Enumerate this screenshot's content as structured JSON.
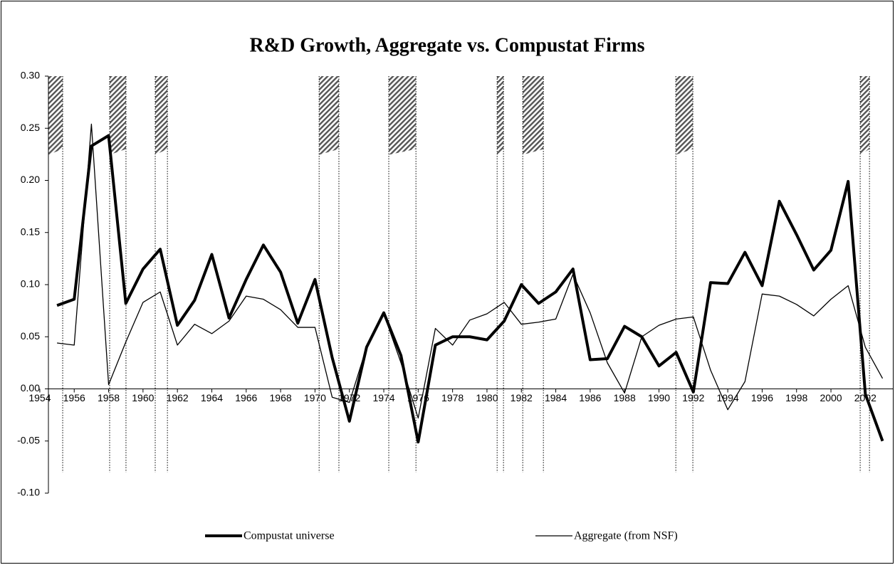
{
  "chart_data": {
    "type": "line",
    "title": "R&D Growth, Aggregate vs. Compustat Firms",
    "x": [
      1955,
      1956,
      1957,
      1958,
      1959,
      1960,
      1961,
      1962,
      1963,
      1964,
      1965,
      1966,
      1967,
      1968,
      1969,
      1970,
      1971,
      1972,
      1973,
      1974,
      1975,
      1976,
      1977,
      1978,
      1979,
      1980,
      1981,
      1982,
      1983,
      1984,
      1985,
      1986,
      1987,
      1988,
      1989,
      1990,
      1991,
      1992,
      1993,
      1994,
      1995,
      1996,
      1997,
      1998,
      1999,
      2000,
      2001,
      2002,
      2003
    ],
    "series": [
      {
        "name": "Compustat universe",
        "color": "#000000",
        "width": 4,
        "values": [
          0.08,
          0.086,
          0.233,
          0.243,
          0.082,
          0.115,
          0.134,
          0.061,
          0.085,
          0.129,
          0.068,
          0.105,
          0.138,
          0.112,
          0.063,
          0.105,
          0.03,
          -0.031,
          0.04,
          0.073,
          0.032,
          -0.051,
          0.042,
          0.05,
          0.05,
          0.047,
          0.065,
          0.1,
          0.082,
          0.093,
          0.115,
          0.028,
          0.029,
          0.06,
          0.05,
          0.022,
          0.035,
          -0.003,
          0.102,
          0.101,
          0.131,
          0.099,
          0.18,
          0.148,
          0.114,
          0.133,
          0.199,
          -0.005,
          -0.05
        ]
      },
      {
        "name": "Aggregate (from NSF)",
        "color": "#000000",
        "width": 1.3,
        "values": [
          0.044,
          0.042,
          0.254,
          0.004,
          0.045,
          0.083,
          0.093,
          0.042,
          0.062,
          0.053,
          0.065,
          0.089,
          0.086,
          0.076,
          0.059,
          0.059,
          -0.008,
          -0.013,
          0.04,
          0.072,
          0.025,
          -0.028,
          0.058,
          0.042,
          0.066,
          0.072,
          0.083,
          0.062,
          0.064,
          0.067,
          0.11,
          0.073,
          0.025,
          -0.004,
          0.05,
          0.061,
          0.067,
          0.069,
          0.018,
          -0.02,
          0.007,
          0.091,
          0.089,
          0.081,
          0.07,
          0.086,
          0.099,
          0.04,
          0.01
        ]
      }
    ],
    "xlim": [
      1954.5,
      2003.6
    ],
    "xticks": [
      1954,
      1956,
      1958,
      1960,
      1962,
      1964,
      1966,
      1968,
      1970,
      1972,
      1974,
      1976,
      1978,
      1980,
      1982,
      1984,
      1986,
      1988,
      1990,
      1992,
      1994,
      1996,
      1998,
      2000,
      2002
    ],
    "ylim": [
      -0.1,
      0.3
    ],
    "yticks": [
      {
        "value": -0.1,
        "label": "-0.10"
      },
      -0.05,
      {
        "value": 0.0,
        "label": "0.00"
      },
      0.05,
      {
        "value": 0.1,
        "label": "0.10"
      },
      0.15,
      {
        "value": 0.2,
        "label": "0.20"
      },
      0.25,
      {
        "value": 0.3,
        "label": "0.30"
      }
    ],
    "recessions": [
      [
        1954.5,
        1955.33
      ],
      [
        1958.06,
        1959.01
      ],
      [
        1960.71,
        1961.42
      ],
      [
        1970.24,
        1971.39
      ],
      [
        1974.29,
        1975.87
      ],
      [
        1980.59,
        1980.96
      ],
      [
        1982.08,
        1983.28
      ],
      [
        1990.98,
        1991.97
      ],
      [
        2001.7,
        2002.24
      ]
    ],
    "recession_band": [
      0.23,
      0.3
    ],
    "recession_line_bottom": -0.08,
    "grid": false
  }
}
